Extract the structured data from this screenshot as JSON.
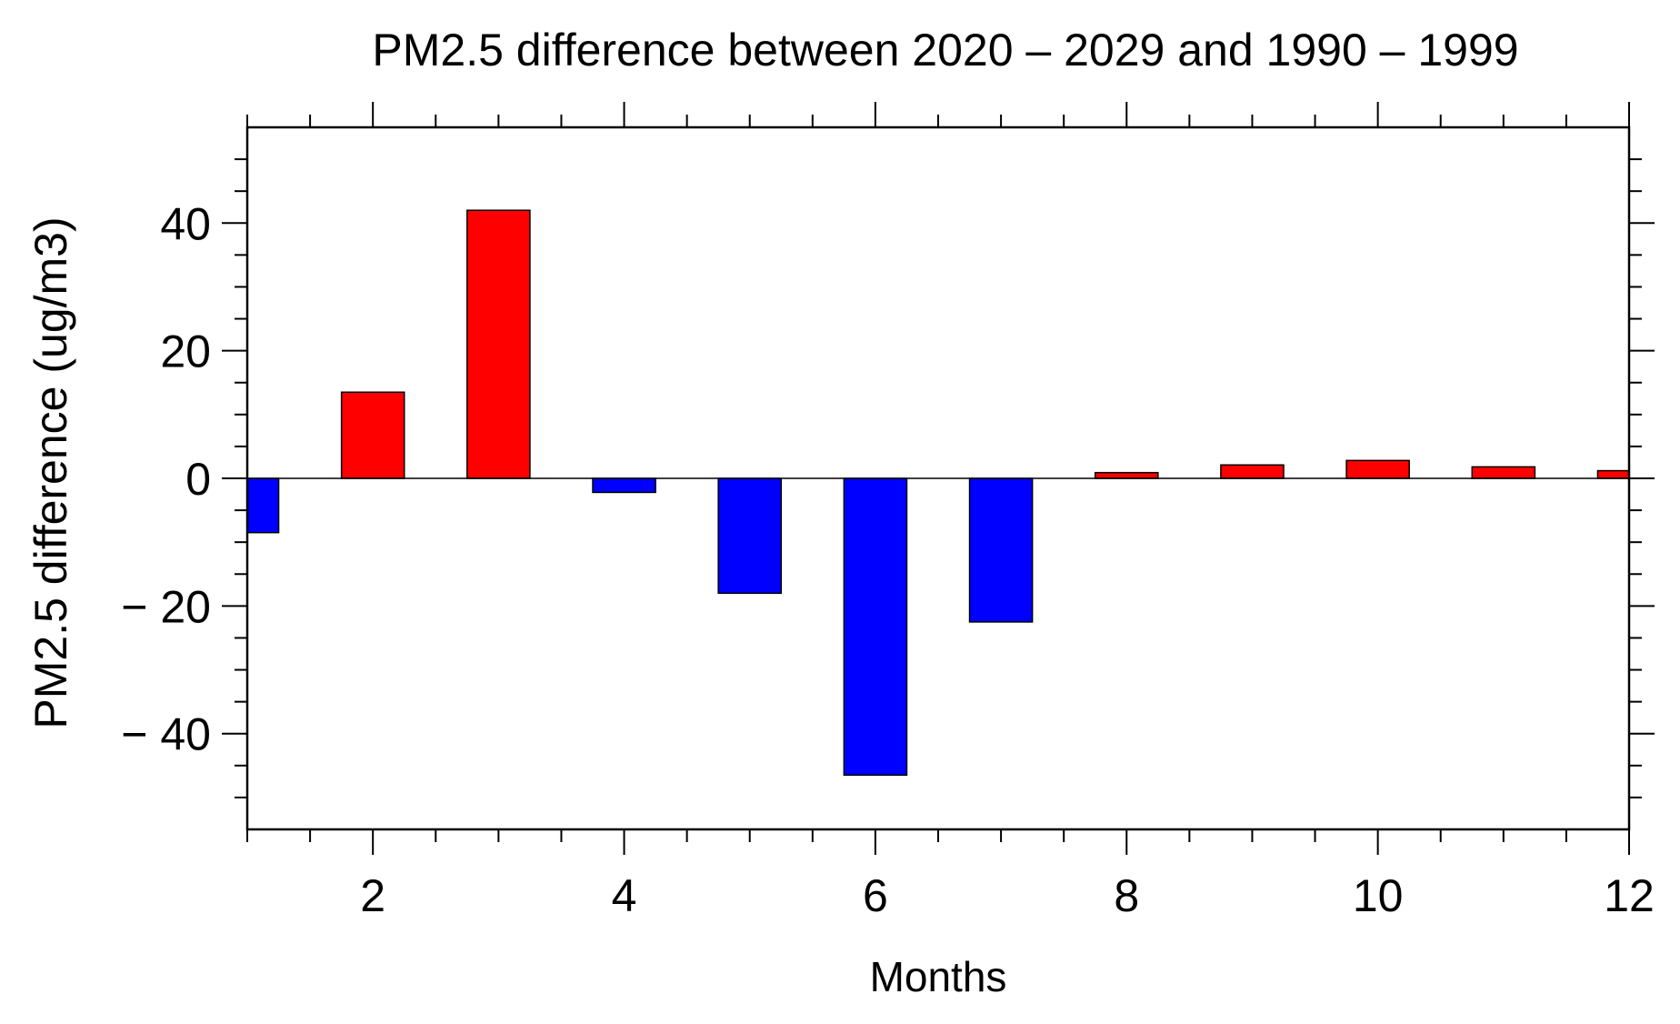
{
  "chart_data": {
    "type": "bar",
    "title": "PM2.5 difference between 2020 – 2029 and 1990 – 1999",
    "xlabel": "Months",
    "ylabel": "PM2.5 difference (ug/m3)",
    "x": [
      1,
      2,
      3,
      4,
      5,
      6,
      7,
      8,
      9,
      10,
      11,
      12
    ],
    "values": [
      -8.5,
      13.5,
      42.0,
      -2.2,
      -18.0,
      -46.5,
      -22.5,
      0.9,
      2.1,
      2.8,
      1.8,
      1.2
    ],
    "xlim": [
      1,
      12
    ],
    "ylim": [
      -55,
      55
    ],
    "xticks": [
      2,
      4,
      6,
      8,
      10,
      12
    ],
    "xtick_labels": [
      "2",
      "4",
      "6",
      "8",
      "10",
      "12"
    ],
    "yticks": [
      -40,
      -20,
      0,
      20,
      40
    ],
    "ytick_labels": [
      "− 40",
      "− 20",
      "0",
      "20",
      "40"
    ],
    "positive_color": "#ff0000",
    "negative_color": "#0000ff",
    "grid": false,
    "legend": "none"
  }
}
